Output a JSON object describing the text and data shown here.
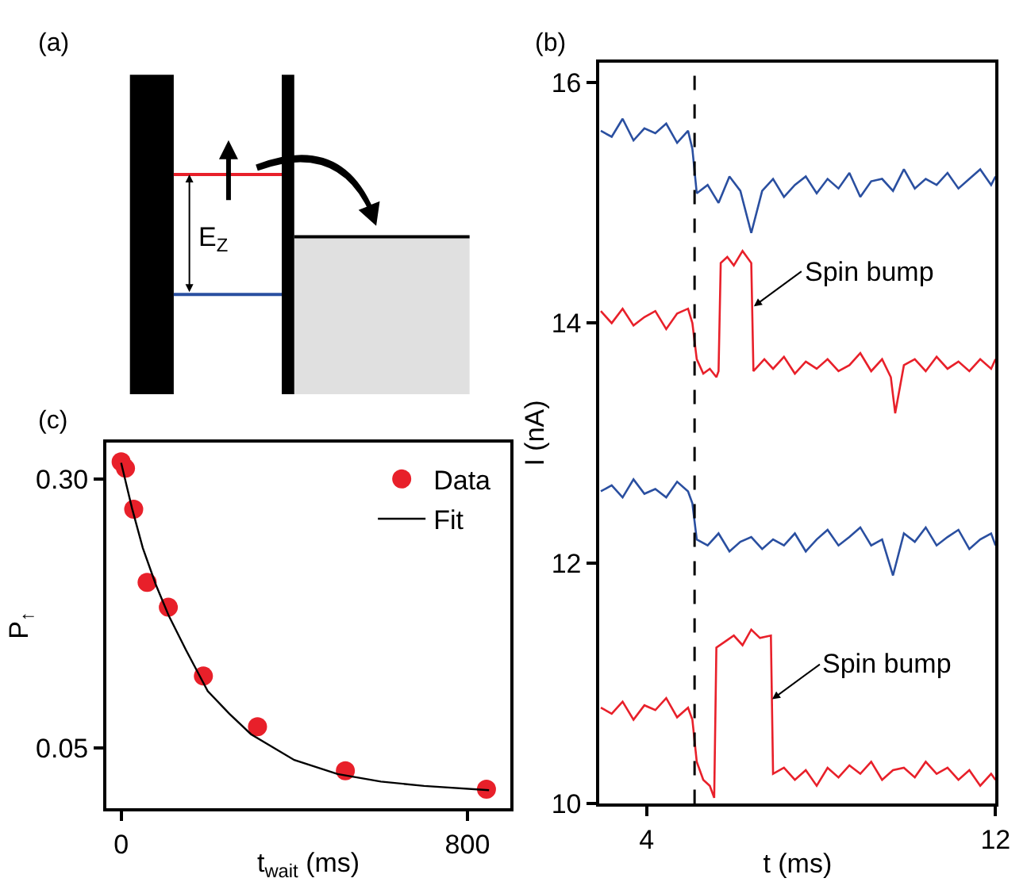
{
  "chart_data": [
    {
      "type": "other",
      "title": "(a)",
      "annotations": [
        "E$_{Z}$"
      ]
    },
    {
      "type": "line",
      "title": "(b)",
      "xlabel": "t (ms)",
      "ylabel": "I (nA)",
      "xlim": [
        2.92,
        12
      ],
      "xticks": [
        4,
        12
      ],
      "ylim": [
        10,
        16.17
      ],
      "yticks": [
        10,
        12,
        14,
        16
      ],
      "legend": false,
      "marker": "none",
      "line_style": "solid",
      "series": [
        {
          "color": "#2a4fa0",
          "x": [
            2.95,
            3.2,
            3.45,
            3.7,
            3.95,
            4.2,
            4.45,
            4.7,
            4.95,
            5.05,
            5.15,
            5.4,
            5.65,
            5.9,
            6.15,
            6.4,
            6.65,
            6.9,
            7.15,
            7.4,
            7.65,
            7.9,
            8.15,
            8.4,
            8.65,
            8.9,
            9.15,
            9.4,
            9.65,
            9.9,
            10.15,
            10.4,
            10.65,
            10.9,
            11.15,
            11.4,
            11.65,
            11.9,
            12.0
          ],
          "values": [
            15.6,
            15.55,
            15.7,
            15.52,
            15.62,
            15.58,
            15.66,
            15.5,
            15.6,
            15.45,
            15.08,
            15.15,
            15.0,
            15.22,
            15.1,
            14.75,
            15.1,
            15.2,
            15.05,
            15.15,
            15.22,
            15.08,
            15.2,
            15.12,
            15.25,
            15.05,
            15.18,
            15.2,
            15.1,
            15.28,
            15.12,
            15.2,
            15.15,
            15.25,
            15.12,
            15.2,
            15.28,
            15.15,
            15.22
          ]
        },
        {
          "color": "#e8202a",
          "x": [
            2.95,
            3.2,
            3.45,
            3.7,
            3.95,
            4.2,
            4.45,
            4.7,
            4.95,
            5.05,
            5.15,
            5.3,
            5.45,
            5.6,
            5.65,
            5.7,
            5.85,
            6.0,
            6.2,
            6.4,
            6.45,
            6.7,
            6.9,
            7.15,
            7.4,
            7.65,
            7.9,
            8.15,
            8.4,
            8.65,
            8.9,
            9.15,
            9.4,
            9.6,
            9.7,
            9.9,
            10.15,
            10.4,
            10.65,
            10.9,
            11.15,
            11.4,
            11.65,
            11.9,
            12.0
          ],
          "values": [
            14.1,
            14.0,
            14.12,
            13.98,
            14.05,
            14.1,
            13.95,
            14.08,
            14.12,
            14.0,
            13.7,
            13.58,
            13.62,
            13.55,
            13.6,
            14.5,
            14.55,
            14.48,
            14.6,
            14.5,
            13.6,
            13.7,
            13.62,
            13.72,
            13.58,
            13.68,
            13.62,
            13.7,
            13.6,
            13.65,
            13.75,
            13.6,
            13.7,
            13.55,
            13.25,
            13.65,
            13.7,
            13.6,
            13.72,
            13.62,
            13.68,
            13.6,
            13.7,
            13.62,
            13.7
          ]
        },
        {
          "color": "#2a4fa0",
          "x": [
            2.95,
            3.2,
            3.45,
            3.7,
            3.95,
            4.2,
            4.45,
            4.7,
            4.95,
            5.05,
            5.15,
            5.4,
            5.65,
            5.9,
            6.15,
            6.4,
            6.65,
            6.9,
            7.15,
            7.4,
            7.65,
            7.9,
            8.15,
            8.4,
            8.65,
            8.9,
            9.15,
            9.4,
            9.65,
            9.9,
            10.15,
            10.4,
            10.65,
            10.9,
            11.15,
            11.4,
            11.65,
            11.9,
            12.0
          ],
          "values": [
            12.6,
            12.65,
            12.55,
            12.7,
            12.58,
            12.62,
            12.55,
            12.68,
            12.6,
            12.5,
            12.2,
            12.15,
            12.25,
            12.1,
            12.18,
            12.22,
            12.12,
            12.2,
            12.15,
            12.25,
            12.1,
            12.2,
            12.28,
            12.15,
            12.22,
            12.3,
            12.15,
            12.2,
            11.9,
            12.25,
            12.18,
            12.3,
            12.15,
            12.22,
            12.28,
            12.12,
            12.2,
            12.25,
            12.15
          ]
        },
        {
          "color": "#e8202a",
          "x": [
            2.95,
            3.2,
            3.45,
            3.7,
            3.95,
            4.2,
            4.45,
            4.7,
            4.95,
            5.05,
            5.15,
            5.3,
            5.45,
            5.55,
            5.6,
            5.8,
            6.0,
            6.2,
            6.4,
            6.6,
            6.85,
            6.9,
            7.15,
            7.4,
            7.65,
            7.9,
            8.15,
            8.4,
            8.65,
            8.9,
            9.15,
            9.4,
            9.65,
            9.9,
            10.15,
            10.4,
            10.65,
            10.9,
            11.15,
            11.4,
            11.65,
            11.9,
            12.0
          ],
          "values": [
            10.8,
            10.75,
            10.85,
            10.7,
            10.82,
            10.78,
            10.88,
            10.72,
            10.8,
            10.7,
            10.35,
            10.2,
            10.15,
            10.05,
            11.3,
            11.35,
            11.4,
            11.32,
            11.45,
            11.38,
            11.4,
            10.25,
            10.3,
            10.2,
            10.28,
            10.15,
            10.3,
            10.22,
            10.32,
            10.25,
            10.35,
            10.2,
            10.28,
            10.3,
            10.22,
            10.35,
            10.25,
            10.3,
            10.2,
            10.28,
            10.15,
            10.25,
            10.2
          ]
        }
      ],
      "ref_lines": [
        {
          "axis": "x",
          "value": 5.1,
          "color": "#000000",
          "line_style": "dashed"
        }
      ],
      "annotations": [
        {
          "text": "Spin bump",
          "x": 6.46,
          "y": 14.14
        },
        {
          "text": "Spin bump",
          "x": 6.88,
          "y": 10.87
        }
      ]
    },
    {
      "type": "scatter",
      "title": "(c)",
      "xlabel": "t$_{wait}$ (ms)",
      "ylabel": "P$_{↑}$",
      "xlim": [
        -34,
        899
      ],
      "xticks": [
        0,
        800
      ],
      "ylim": [
        -0.006,
        0.334
      ],
      "yticks": [
        0.05,
        {
          "value": 0.3,
          "label": "0.30"
        }
      ],
      "legend": "top right",
      "series": [
        {
          "name": "Data",
          "type": "scatter",
          "marker": "circle",
          "color": "#e8202a",
          "x": [
            0,
            10,
            29,
            60,
            109,
            190,
            315,
            518,
            844
          ],
          "values": [
            0.316,
            0.31,
            0.272,
            0.204,
            0.181,
            0.117,
            0.07,
            0.029,
            0.012
          ]
        },
        {
          "name": "Fit",
          "type": "line",
          "marker": "none",
          "line_style": "solid",
          "color": "#000000",
          "x": [
            0,
            25,
            50,
            80,
            110,
            150,
            200,
            250,
            300,
            400,
            500,
            600,
            700,
            850
          ],
          "values": [
            0.315,
            0.273,
            0.236,
            0.202,
            0.173,
            0.141,
            0.103,
            0.082,
            0.063,
            0.039,
            0.026,
            0.019,
            0.015,
            0.011
          ]
        }
      ]
    }
  ]
}
